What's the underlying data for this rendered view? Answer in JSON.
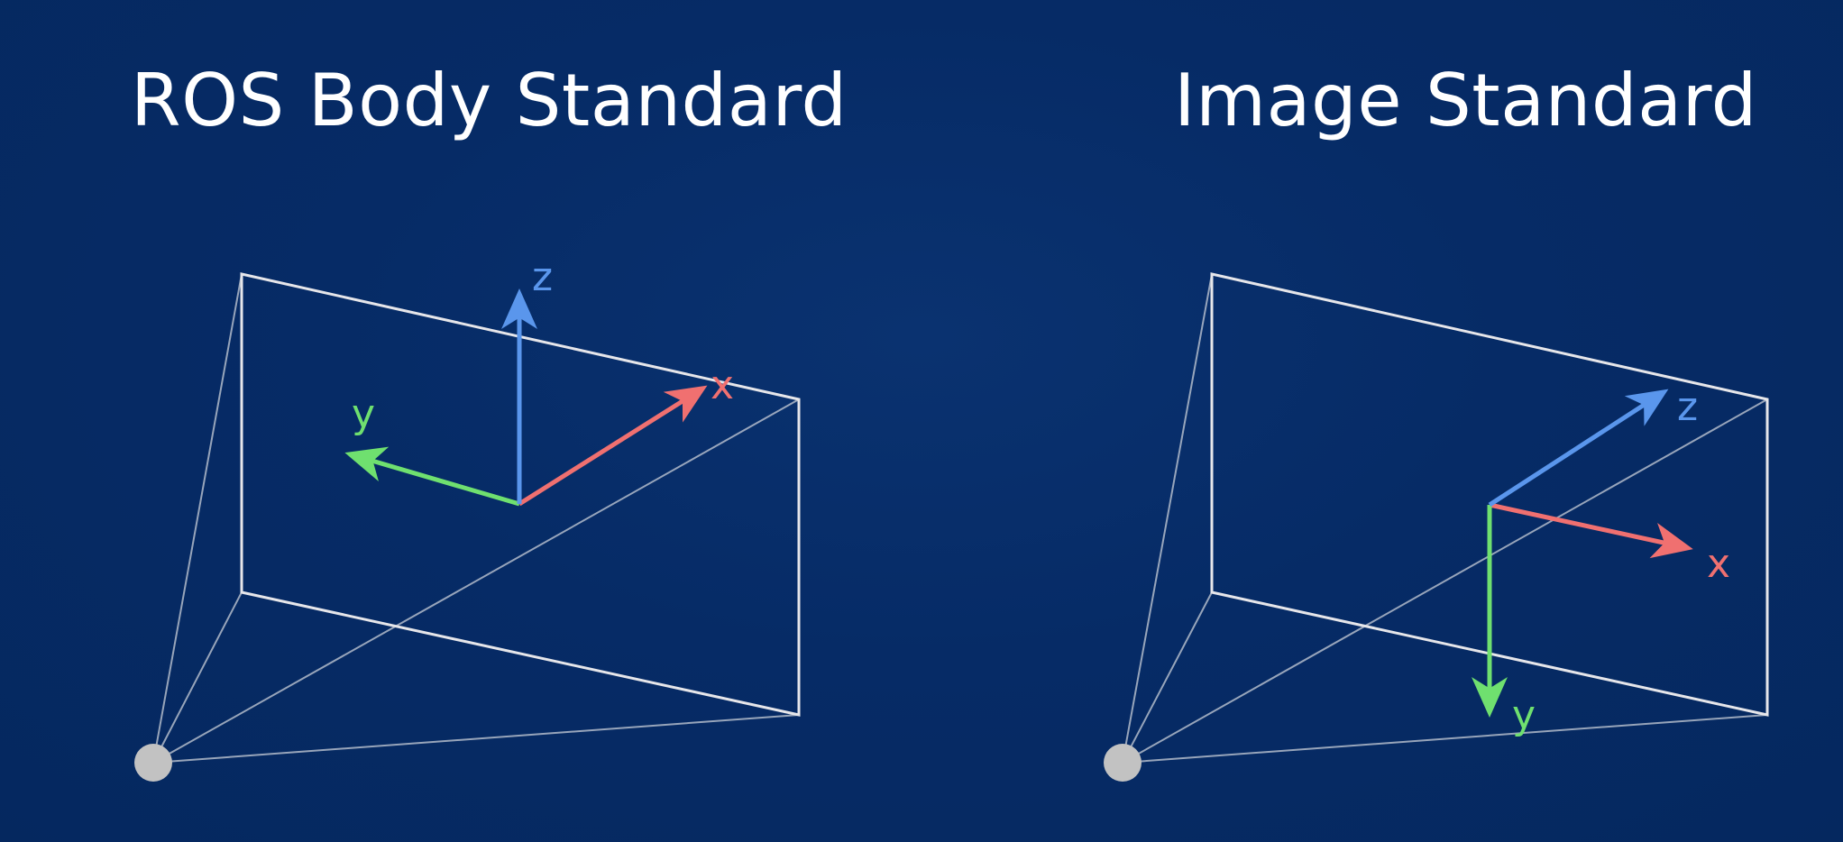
{
  "panels": [
    {
      "title": "ROS Body Standard",
      "axes": {
        "x": {
          "label": "x",
          "color": "#f07070"
        },
        "y": {
          "label": "y",
          "color": "#6fe06f"
        },
        "z": {
          "label": "z",
          "color": "#5a96ec"
        }
      }
    },
    {
      "title": "Image Standard",
      "axes": {
        "x": {
          "label": "x",
          "color": "#f07070"
        },
        "y": {
          "label": "y",
          "color": "#6fe06f"
        },
        "z": {
          "label": "z",
          "color": "#5a96ec"
        }
      }
    }
  ],
  "colors": {
    "frame": "#e6e6ea",
    "frustum": "#c9cfd8",
    "camera_point": "#c2c2c2"
  }
}
